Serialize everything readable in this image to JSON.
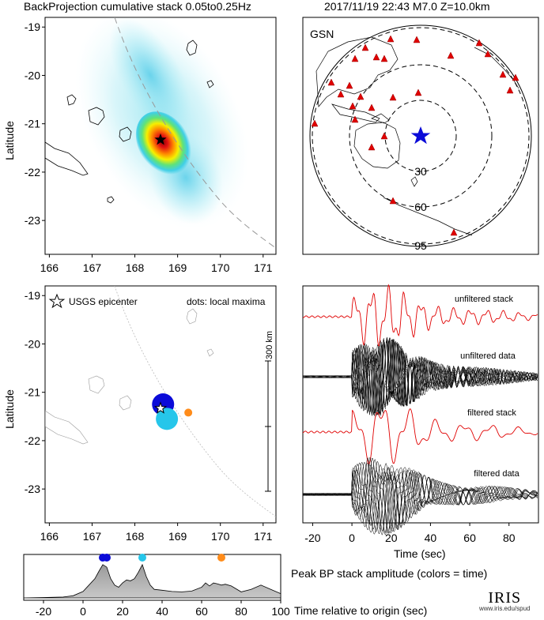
{
  "header": {
    "left_title": "BackProjection cumulative stack 0.05to0.25Hz",
    "right_title": "2017/11/19 22:43  M7.0  Z=10.0km"
  },
  "map": {
    "lon_ticks": [
      "166",
      "167",
      "168",
      "169",
      "170",
      "171"
    ],
    "lat_ticks": [
      "-19",
      "-20",
      "-21",
      "-22",
      "-23"
    ],
    "ylabel": "Latitude",
    "epicenter": {
      "lon": 168.6,
      "lat": -21.33
    }
  },
  "globe": {
    "network_label": "GSN",
    "ring_labels": [
      "30",
      "60",
      "95"
    ]
  },
  "maxima_map": {
    "legend_epicenter": "USGS epicenter",
    "legend_dots": "dots: local maxima",
    "scale_label": "300 km",
    "maxima": [
      {
        "lon": 168.66,
        "lat": -21.25,
        "color": "#0b0bd8",
        "size": "large"
      },
      {
        "lon": 168.75,
        "lat": -21.55,
        "color": "#26c6ea",
        "size": "large"
      },
      {
        "lon": 169.25,
        "lat": -21.42,
        "color": "#ff8c1a",
        "size": "small"
      }
    ]
  },
  "traces": {
    "labels": [
      "unfiltered stack",
      "unfiltered data",
      "filtered stack",
      "filtered data"
    ],
    "xticks": [
      "-20",
      "0",
      "20",
      "40",
      "60",
      "80"
    ],
    "xlabel": "Time (sec)"
  },
  "timeline": {
    "title": "Peak BP stack amplitude (colors = time)",
    "xticks": [
      "-20",
      "0",
      "20",
      "40",
      "60",
      "80",
      "100"
    ],
    "xlabel": "Time relative to origin (sec)"
  },
  "logo": {
    "text": "IRIS",
    "url": "www.iris.edu/spud"
  },
  "chart_data": [
    {
      "type": "heatmap",
      "title": "BackProjection cumulative stack 0.05to0.25Hz",
      "xlabel": "",
      "ylabel": "Latitude",
      "xlim": [
        165.9,
        171.3
      ],
      "ylim": [
        -23.7,
        -18.8
      ],
      "peak": {
        "lon": 168.68,
        "lat": -21.45
      }
    },
    {
      "type": "scatter",
      "title": "Peak BP stack amplitude (colors = time)",
      "xlabel": "Time relative to origin (sec)",
      "xlim": [
        -30,
        100
      ],
      "curve_x": [
        -30,
        -20,
        -10,
        -5,
        0,
        3,
        6,
        8,
        10,
        12,
        14,
        16,
        18,
        20,
        22,
        24,
        26,
        28,
        30,
        32,
        34,
        36,
        40,
        45,
        50,
        55,
        60,
        62,
        64,
        66,
        68,
        70,
        72,
        75,
        80,
        85,
        90,
        95,
        100
      ],
      "curve_y": [
        0.0,
        0.01,
        0.02,
        0.05,
        0.15,
        0.3,
        0.45,
        0.62,
        0.78,
        0.72,
        0.45,
        0.3,
        0.25,
        0.35,
        0.42,
        0.4,
        0.45,
        0.6,
        0.78,
        0.5,
        0.3,
        0.2,
        0.18,
        0.15,
        0.14,
        0.16,
        0.25,
        0.35,
        0.28,
        0.35,
        0.33,
        0.3,
        0.32,
        0.28,
        0.14,
        0.2,
        0.3,
        0.2,
        0.1
      ],
      "peaks": [
        {
          "x": 10,
          "color": "#0b0bd8"
        },
        {
          "x": 12,
          "color": "#0b0bd8"
        },
        {
          "x": 30,
          "color": "#26c6ea"
        },
        {
          "x": 70,
          "color": "#ff8c1a"
        }
      ]
    }
  ]
}
